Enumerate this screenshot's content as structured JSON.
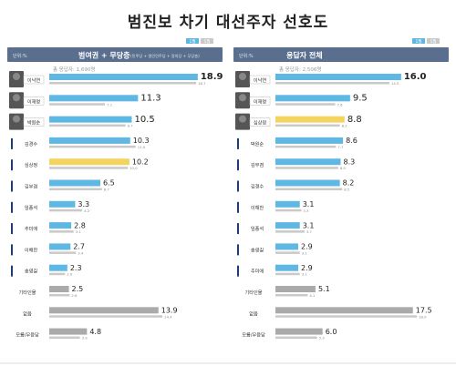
{
  "title": "범진보 차기 대선주자 선호도",
  "colors": {
    "current": "#5fb7e3",
    "previous": "#c9c9c9",
    "highlight": "#f4d35e",
    "other": "#aaaaaa",
    "header_bg": "#5a6f8d"
  },
  "chart_data": [
    {
      "type": "bar",
      "panel_title": "범여권 + 무당층",
      "unit": "단위:%",
      "sample": "총 응답자: 1,690명",
      "legend_note": "(민주당 + 열린민주당 + 정의당 + 무당층)",
      "legend": [
        "1월",
        "5월"
      ],
      "categories": [
        "이낙연",
        "이재명",
        "박원순",
        "김경수",
        "심상정",
        "김부겸",
        "임종석",
        "추미애",
        "이해찬",
        "송영길",
        "기타인물",
        "없음",
        "모름/무응답"
      ],
      "photo_rows": [
        0,
        1,
        2
      ],
      "series": [
        {
          "name": "1월",
          "values": [
            18.9,
            11.3,
            10.5,
            10.3,
            10.2,
            6.5,
            3.3,
            2.8,
            2.7,
            2.3,
            2.5,
            13.9,
            4.8
          ]
        },
        {
          "name": "5월",
          "values": [
            18.7,
            7.1,
            9.7,
            11.0,
            10.0,
            6.7,
            4.2,
            3.1,
            3.4,
            2.0,
            2.6,
            14.4,
            3.9
          ]
        }
      ],
      "xlim": [
        0,
        19.5
      ]
    },
    {
      "type": "bar",
      "panel_title": "응답자 전체",
      "unit": "단위:%",
      "sample": "총 응답자: 2,506명",
      "legend_note": "",
      "legend": [
        "1월",
        "5월"
      ],
      "categories": [
        "이낙연",
        "이재명",
        "심상정",
        "박원순",
        "김부겸",
        "김경수",
        "이해찬",
        "임종석",
        "송영길",
        "추미애",
        "기타인물",
        "없음",
        "모름/무응답"
      ],
      "photo_rows": [
        0,
        1,
        2
      ],
      "series": [
        {
          "name": "1월",
          "values": [
            16.0,
            9.5,
            8.8,
            8.6,
            8.3,
            8.2,
            3.1,
            3.1,
            2.9,
            2.9,
            5.1,
            17.5,
            6.0
          ]
        },
        {
          "name": "5월",
          "values": [
            14.5,
            7.6,
            8.2,
            7.7,
            8.0,
            8.5,
            3.3,
            3.7,
            3.1,
            3.1,
            4.1,
            18.0,
            5.3
          ]
        }
      ],
      "xlim": [
        0,
        19.5
      ]
    }
  ]
}
